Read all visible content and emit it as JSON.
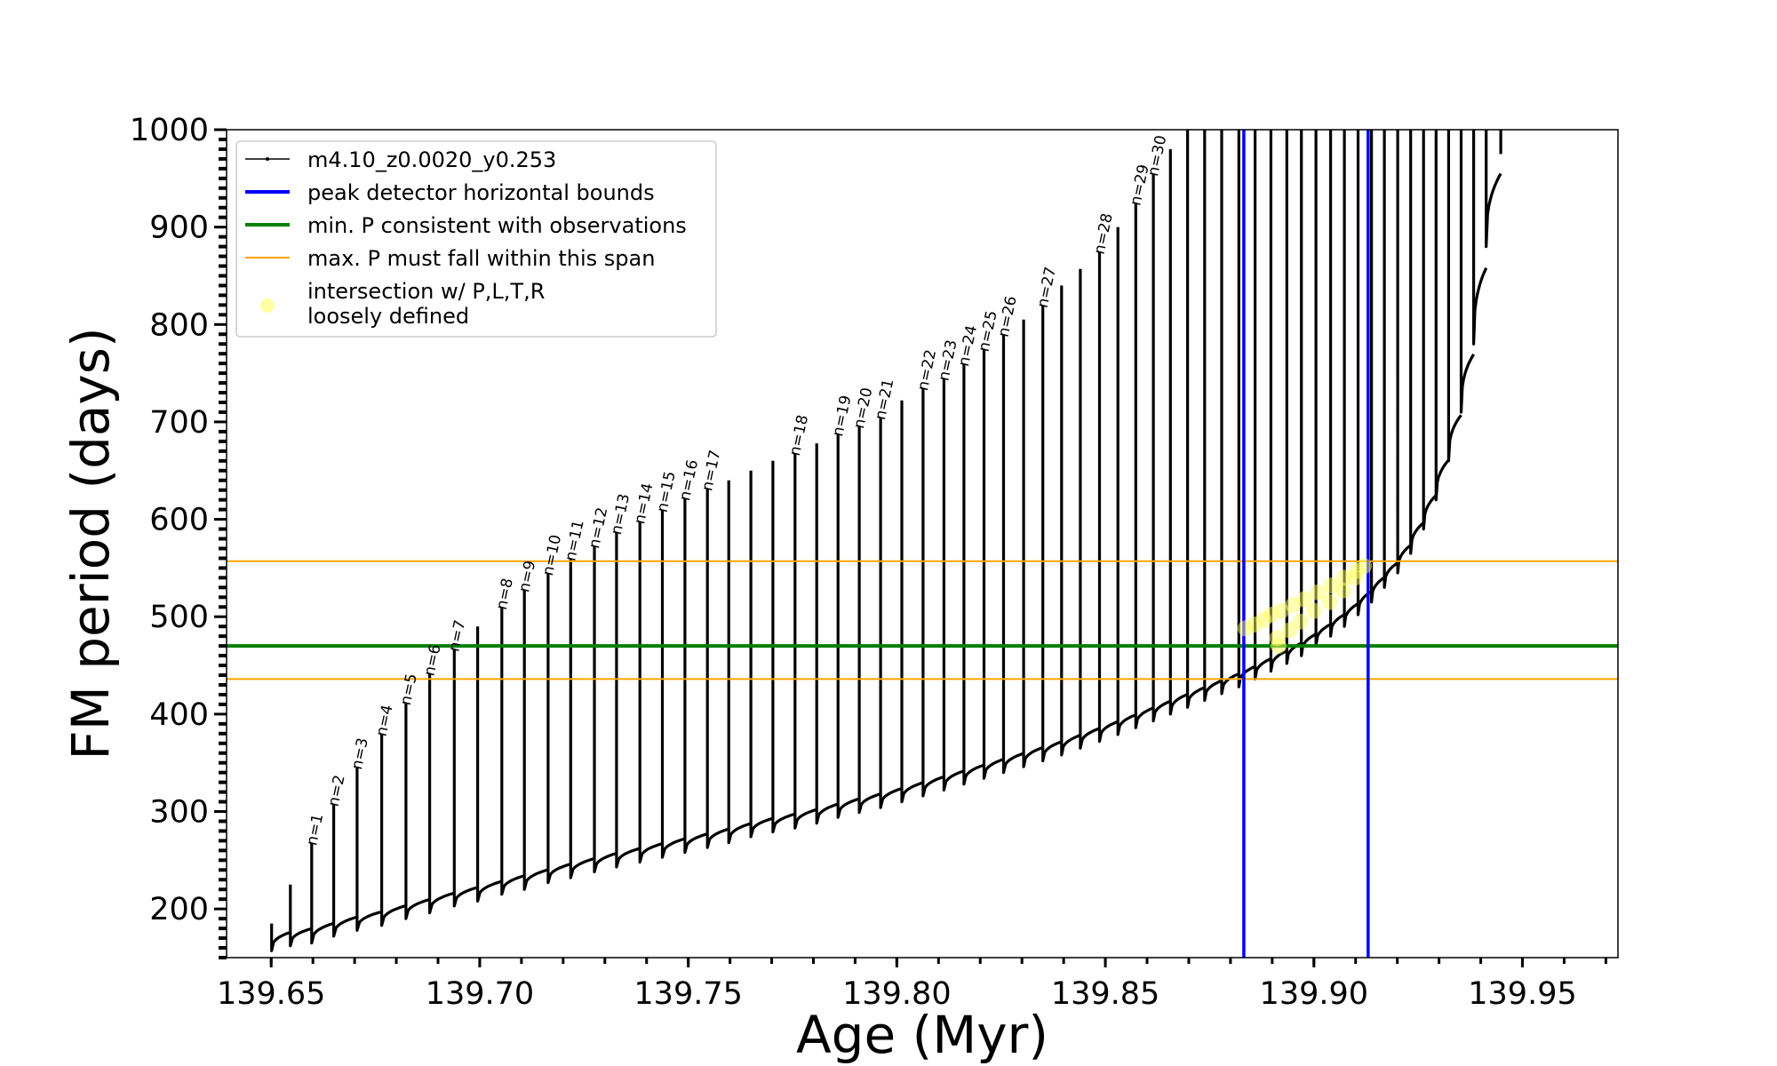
{
  "chart_data": {
    "type": "line",
    "xlabel": "Age (Myr)",
    "ylabel": "FM period (days)",
    "xlim": [
      139.6393,
      139.9729
    ],
    "ylim": [
      150,
      1000
    ],
    "xticks": [
      139.65,
      139.7,
      139.75,
      139.8,
      139.85,
      139.9,
      139.95
    ],
    "xtick_labels": [
      "139.65",
      "139.70",
      "139.75",
      "139.80",
      "139.85",
      "139.90",
      "139.95"
    ],
    "yticks": [
      200,
      300,
      400,
      500,
      600,
      700,
      800,
      900,
      1000
    ],
    "ytick_labels": [
      "200",
      "300",
      "400",
      "500",
      "600",
      "700",
      "800",
      "900",
      "1000"
    ],
    "grid": false,
    "legend_position": "top-left",
    "legend": [
      {
        "label": "m4.10_z0.0020_y0.253",
        "color": "#000000",
        "style": "line-dot"
      },
      {
        "label": "peak detector horizontal bounds",
        "color": "#0000ff",
        "style": "thick-line"
      },
      {
        "label": "min. P consistent with observations",
        "color": "#008000",
        "style": "thick-line"
      },
      {
        "label": "max. P must fall within this span",
        "color": "#ffa500",
        "style": "thin-line"
      },
      {
        "label": "intersection w/ P,L,T,R",
        "label2": "loosely defined",
        "color": "#ffff66",
        "style": "marker"
      }
    ],
    "model_track": {
      "name": "m4.10_z0.0020_y0.253",
      "color": "#000000",
      "pulses": [
        {
          "x": 139.6501,
          "base": 157,
          "top": 185
        },
        {
          "x": 139.6546,
          "base": 162,
          "top": 225
        },
        {
          "x": 139.6597,
          "base": 165,
          "top": 268
        },
        {
          "x": 139.665,
          "base": 172,
          "top": 308
        },
        {
          "x": 139.6706,
          "base": 178,
          "top": 346
        },
        {
          "x": 139.6765,
          "base": 183,
          "top": 380
        },
        {
          "x": 139.6823,
          "base": 190,
          "top": 412
        },
        {
          "x": 139.688,
          "base": 196,
          "top": 442
        },
        {
          "x": 139.6939,
          "base": 203,
          "top": 467
        },
        {
          "x": 139.6995,
          "base": 208,
          "top": 490
        },
        {
          "x": 139.7053,
          "base": 215,
          "top": 510
        },
        {
          "x": 139.7107,
          "base": 220,
          "top": 528
        },
        {
          "x": 139.7164,
          "base": 227,
          "top": 545
        },
        {
          "x": 139.7218,
          "base": 232,
          "top": 560
        },
        {
          "x": 139.7275,
          "base": 238,
          "top": 573
        },
        {
          "x": 139.7328,
          "base": 243,
          "top": 587
        },
        {
          "x": 139.7384,
          "base": 248,
          "top": 598
        },
        {
          "x": 139.7438,
          "base": 253,
          "top": 610
        },
        {
          "x": 139.7492,
          "base": 258,
          "top": 622
        },
        {
          "x": 139.7546,
          "base": 263,
          "top": 632
        },
        {
          "x": 139.7597,
          "base": 268,
          "top": 640
        },
        {
          "x": 139.765,
          "base": 274,
          "top": 650
        },
        {
          "x": 139.7703,
          "base": 279,
          "top": 660
        },
        {
          "x": 139.7756,
          "base": 283,
          "top": 668
        },
        {
          "x": 139.7808,
          "base": 288,
          "top": 678
        },
        {
          "x": 139.7859,
          "base": 294,
          "top": 688
        },
        {
          "x": 139.791,
          "base": 299,
          "top": 696
        },
        {
          "x": 139.7961,
          "base": 304,
          "top": 705
        },
        {
          "x": 139.8012,
          "base": 310,
          "top": 722
        },
        {
          "x": 139.8063,
          "base": 316,
          "top": 735
        },
        {
          "x": 139.8113,
          "base": 322,
          "top": 745
        },
        {
          "x": 139.8161,
          "base": 328,
          "top": 760
        },
        {
          "x": 139.8209,
          "base": 334,
          "top": 775
        },
        {
          "x": 139.8256,
          "base": 340,
          "top": 790
        },
        {
          "x": 139.8304,
          "base": 346,
          "top": 805
        },
        {
          "x": 139.835,
          "base": 352,
          "top": 820
        },
        {
          "x": 139.8395,
          "base": 358,
          "top": 840
        },
        {
          "x": 139.844,
          "base": 365,
          "top": 857
        },
        {
          "x": 139.8486,
          "base": 372,
          "top": 875
        },
        {
          "x": 139.853,
          "base": 379,
          "top": 900
        },
        {
          "x": 139.8573,
          "base": 386,
          "top": 925
        },
        {
          "x": 139.8615,
          "base": 393,
          "top": 955
        },
        {
          "x": 139.8656,
          "base": 400,
          "top": 980
        },
        {
          "x": 139.8697,
          "base": 407,
          "top": 1010
        },
        {
          "x": 139.8738,
          "base": 414,
          "top": 1010
        },
        {
          "x": 139.8779,
          "base": 421,
          "top": 1010
        },
        {
          "x": 139.882,
          "base": 428,
          "top": 1010
        },
        {
          "x": 139.8859,
          "base": 436,
          "top": 1010
        },
        {
          "x": 139.8897,
          "base": 444,
          "top": 1010
        },
        {
          "x": 139.8935,
          "base": 452,
          "top": 1010
        },
        {
          "x": 139.897,
          "base": 460,
          "top": 1010
        },
        {
          "x": 139.9005,
          "base": 470,
          "top": 1010
        },
        {
          "x": 139.904,
          "base": 480,
          "top": 1010
        },
        {
          "x": 139.9073,
          "base": 490,
          "top": 1010
        },
        {
          "x": 139.9106,
          "base": 502,
          "top": 1010
        },
        {
          "x": 139.9138,
          "base": 515,
          "top": 1010
        },
        {
          "x": 139.9169,
          "base": 530,
          "top": 1010
        },
        {
          "x": 139.9201,
          "base": 545,
          "top": 1010
        },
        {
          "x": 139.9232,
          "base": 565,
          "top": 1010
        },
        {
          "x": 139.9263,
          "base": 590,
          "top": 1010
        },
        {
          "x": 139.9293,
          "base": 620,
          "top": 1010
        },
        {
          "x": 139.9323,
          "base": 660,
          "top": 1010
        },
        {
          "x": 139.9353,
          "base": 710,
          "top": 1010
        },
        {
          "x": 139.9383,
          "base": 780,
          "top": 1010
        },
        {
          "x": 139.9413,
          "base": 880,
          "top": 1010
        },
        {
          "x": 139.9448,
          "base": 975,
          "top": 1010
        }
      ]
    },
    "vertical_lines": [
      {
        "x": 139.8832,
        "color": "#0000ff",
        "name": "peak detector horizontal bounds"
      },
      {
        "x": 139.913,
        "color": "#0000ff",
        "name": "peak detector horizontal bounds"
      }
    ],
    "horizontal_lines": [
      {
        "y": 470,
        "color": "#008000",
        "width": "thick",
        "name": "min. P consistent with observations"
      },
      {
        "y": 557,
        "color": "#ffa500",
        "width": "thin",
        "name": "max. P must fall within this span"
      },
      {
        "y": 436,
        "color": "#ffa500",
        "width": "thin",
        "name": "max. P must fall within this span"
      }
    ],
    "intersection_points": [
      {
        "x": 139.8836,
        "y": 488
      },
      {
        "x": 139.8858,
        "y": 492
      },
      {
        "x": 139.888,
        "y": 497
      },
      {
        "x": 139.8898,
        "y": 502
      },
      {
        "x": 139.8912,
        "y": 478
      },
      {
        "x": 139.8922,
        "y": 506
      },
      {
        "x": 139.8942,
        "y": 486
      },
      {
        "x": 139.895,
        "y": 512
      },
      {
        "x": 139.8968,
        "y": 495
      },
      {
        "x": 139.8978,
        "y": 518
      },
      {
        "x": 139.9,
        "y": 506
      },
      {
        "x": 139.901,
        "y": 525
      },
      {
        "x": 139.9038,
        "y": 515
      },
      {
        "x": 139.9042,
        "y": 532
      },
      {
        "x": 139.907,
        "y": 527
      },
      {
        "x": 139.9072,
        "y": 540
      },
      {
        "x": 139.9098,
        "y": 540
      },
      {
        "x": 139.9102,
        "y": 547
      },
      {
        "x": 139.912,
        "y": 552
      },
      {
        "x": 139.8915,
        "y": 470
      }
    ],
    "annotations": [
      {
        "text": "n=1",
        "x": 139.6608,
        "y": 268
      },
      {
        "text": "n=2",
        "x": 139.666,
        "y": 308
      },
      {
        "text": "n=3",
        "x": 139.6716,
        "y": 346
      },
      {
        "text": "n=4",
        "x": 139.6775,
        "y": 380
      },
      {
        "text": "n=5",
        "x": 139.6833,
        "y": 412
      },
      {
        "text": "n=6",
        "x": 139.689,
        "y": 442
      },
      {
        "text": "n=7",
        "x": 139.6949,
        "y": 467
      },
      {
        "text": "n=8",
        "x": 139.7063,
        "y": 510
      },
      {
        "text": "n=9",
        "x": 139.7117,
        "y": 528
      },
      {
        "text": "n=10",
        "x": 139.7174,
        "y": 545
      },
      {
        "text": "n=11",
        "x": 139.7228,
        "y": 560
      },
      {
        "text": "n=12",
        "x": 139.7285,
        "y": 573
      },
      {
        "text": "n=13",
        "x": 139.7338,
        "y": 587
      },
      {
        "text": "n=14",
        "x": 139.7394,
        "y": 598
      },
      {
        "text": "n=15",
        "x": 139.7448,
        "y": 610
      },
      {
        "text": "n=16",
        "x": 139.7502,
        "y": 622
      },
      {
        "text": "n=17",
        "x": 139.7556,
        "y": 632
      },
      {
        "text": "n=18",
        "x": 139.7766,
        "y": 668
      },
      {
        "text": "n=19",
        "x": 139.7869,
        "y": 688
      },
      {
        "text": "n=20",
        "x": 139.792,
        "y": 696
      },
      {
        "text": "n=21",
        "x": 139.7971,
        "y": 705
      },
      {
        "text": "n=22",
        "x": 139.8073,
        "y": 735
      },
      {
        "text": "n=23",
        "x": 139.8123,
        "y": 745
      },
      {
        "text": "n=24",
        "x": 139.8171,
        "y": 760
      },
      {
        "text": "n=25",
        "x": 139.8219,
        "y": 775
      },
      {
        "text": "n=26",
        "x": 139.8266,
        "y": 790
      },
      {
        "text": "n=27",
        "x": 139.836,
        "y": 820
      },
      {
        "text": "n=28",
        "x": 139.8496,
        "y": 875
      },
      {
        "text": "n=29",
        "x": 139.8583,
        "y": 925
      },
      {
        "text": "n=30",
        "x": 139.8625,
        "y": 955
      }
    ]
  }
}
